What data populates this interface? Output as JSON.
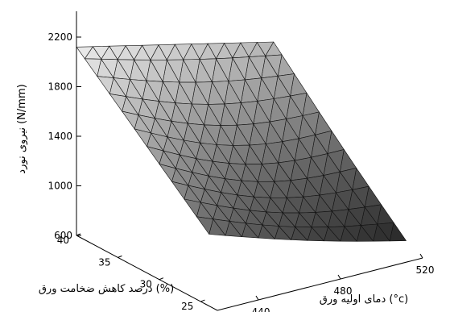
{
  "chart_data": {
    "type": "surface",
    "title": "",
    "zlabel": "نیروی نورد (N/mm)",
    "xlabel": "دمای اولیه ورق (°c)",
    "ylabel": "درصد کاهش ضخامت ورق (%)",
    "x_ticks": [
      "440",
      "480",
      "520"
    ],
    "y_ticks": [
      "25",
      "30",
      "35",
      "40"
    ],
    "z_ticks": [
      "600",
      "1000",
      "1400",
      "1800",
      "2200"
    ],
    "xlim": [
      420,
      520
    ],
    "ylim": [
      23,
      40
    ],
    "zlim": [
      600,
      2200
    ],
    "x_grid": [
      420,
      428,
      436,
      444,
      452,
      460,
      468,
      476,
      484,
      492,
      500,
      508,
      516
    ],
    "y_grid": [
      24,
      25.5,
      27,
      28.5,
      30,
      31.5,
      33,
      34.5,
      36,
      37.5,
      39,
      40
    ],
    "corner_values": {
      "x_min_y_min": 1120,
      "x_max_y_min": 640,
      "x_min_y_max": 2120,
      "x_max_y_max": 1740
    },
    "grid": false
  }
}
